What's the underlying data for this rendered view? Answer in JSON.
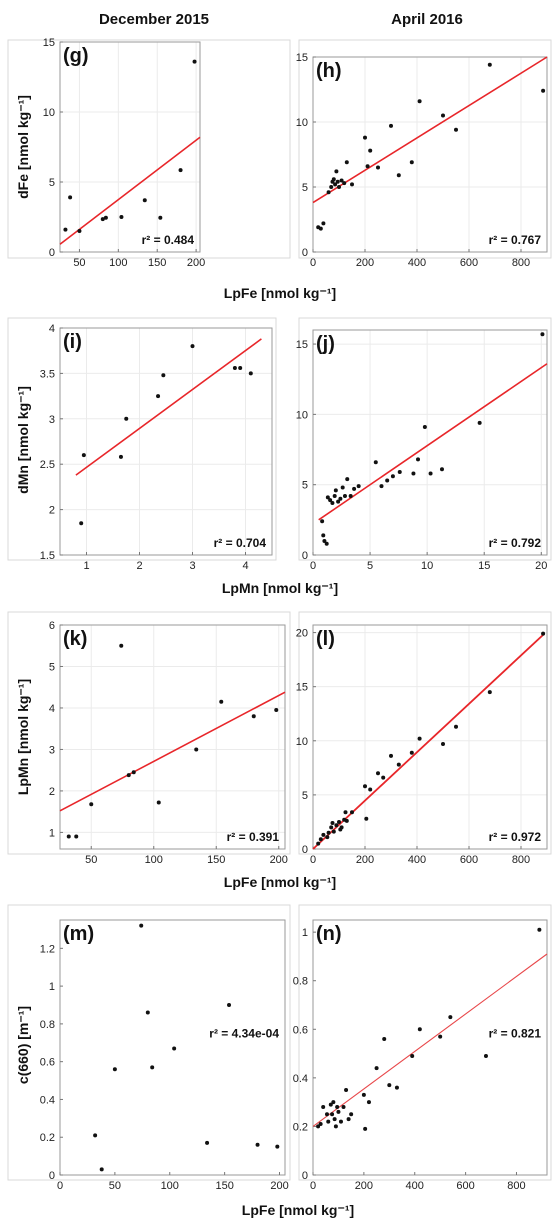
{
  "columns": [
    "December 2015",
    "April 2016"
  ],
  "chart_data": [
    {
      "id": "g",
      "type": "scatter",
      "label": "(g)",
      "r2": "r² = 0.484",
      "xlim": [
        25,
        205
      ],
      "ylim": [
        0,
        15
      ],
      "xticks": [
        50,
        100,
        150,
        200
      ],
      "yticks": [
        0,
        5,
        10,
        15
      ],
      "xticklabels": [
        "50",
        "100",
        "150",
        "200"
      ],
      "yticklabels": [
        "0",
        "5",
        "10",
        "15"
      ],
      "ylabel": "dFe [nmol kg⁻¹]",
      "points": [
        [
          32,
          1.6
        ],
        [
          38,
          3.9
        ],
        [
          50,
          1.5
        ],
        [
          80,
          2.35
        ],
        [
          84,
          2.45
        ],
        [
          104,
          2.5
        ],
        [
          134,
          3.7
        ],
        [
          154,
          2.45
        ],
        [
          180,
          5.85
        ],
        [
          198,
          13.6
        ]
      ],
      "fit": [
        [
          25,
          0.55
        ],
        [
          205,
          8.2
        ]
      ],
      "fit_color": "#e8262a",
      "fit_width": 1.6,
      "grid": true
    },
    {
      "id": "h",
      "type": "scatter",
      "label": "(h)",
      "r2": "r² = 0.767",
      "xlim": [
        0,
        900
      ],
      "ylim": [
        0,
        15
      ],
      "xticks": [
        0,
        200,
        400,
        600,
        800
      ],
      "yticks": [
        0,
        5,
        10,
        15
      ],
      "xticklabels": [
        "0",
        "200",
        "400",
        "600",
        "800"
      ],
      "yticklabels": [
        "0",
        "5",
        "10",
        "15"
      ],
      "points": [
        [
          20,
          1.9
        ],
        [
          30,
          1.8
        ],
        [
          40,
          2.2
        ],
        [
          60,
          4.6
        ],
        [
          70,
          5.0
        ],
        [
          75,
          5.4
        ],
        [
          80,
          5.6
        ],
        [
          85,
          5.2
        ],
        [
          90,
          6.2
        ],
        [
          95,
          5.4
        ],
        [
          100,
          5.0
        ],
        [
          110,
          5.5
        ],
        [
          120,
          5.3
        ],
        [
          130,
          6.9
        ],
        [
          150,
          5.2
        ],
        [
          200,
          8.8
        ],
        [
          210,
          6.6
        ],
        [
          220,
          7.8
        ],
        [
          250,
          6.5
        ],
        [
          300,
          9.7
        ],
        [
          330,
          5.9
        ],
        [
          380,
          6.9
        ],
        [
          410,
          11.6
        ],
        [
          500,
          10.5
        ],
        [
          550,
          9.4
        ],
        [
          680,
          14.4
        ],
        [
          885,
          12.4
        ]
      ],
      "fit": [
        [
          0,
          3.8
        ],
        [
          900,
          15.0
        ]
      ],
      "fit_color": "#e8262a",
      "fit_width": 1.6,
      "grid": true
    },
    {
      "id": "i",
      "type": "scatter",
      "label": "(i)",
      "r2": "r² = 0.704",
      "xlim": [
        0.5,
        4.5
      ],
      "ylim": [
        1.5,
        4
      ],
      "xticks": [
        1,
        2,
        3,
        4
      ],
      "yticks": [
        1.5,
        2,
        2.5,
        3,
        3.5,
        4
      ],
      "xticklabels": [
        "1",
        "2",
        "3",
        "4"
      ],
      "yticklabels": [
        "1.5",
        "2",
        "2.5",
        "3",
        "3.5",
        "4"
      ],
      "ylabel": "dMn [nmol kg⁻¹]",
      "points": [
        [
          0.9,
          1.85
        ],
        [
          0.95,
          2.6
        ],
        [
          1.65,
          2.58
        ],
        [
          1.75,
          3.0
        ],
        [
          2.35,
          3.25
        ],
        [
          2.45,
          3.48
        ],
        [
          3.0,
          3.8
        ],
        [
          3.8,
          3.56
        ],
        [
          3.9,
          3.56
        ],
        [
          4.1,
          3.5
        ]
      ],
      "fit": [
        [
          0.8,
          2.38
        ],
        [
          4.3,
          3.88
        ]
      ],
      "fit_color": "#e8262a",
      "fit_width": 1.6,
      "grid": true
    },
    {
      "id": "j",
      "type": "scatter",
      "label": "(j)",
      "r2": "r² = 0.792",
      "xlim": [
        0,
        20.5
      ],
      "ylim": [
        0,
        16
      ],
      "xticks": [
        0,
        5,
        10,
        15,
        20
      ],
      "yticks": [
        0,
        5,
        10,
        15
      ],
      "xticklabels": [
        "0",
        "5",
        "10",
        "15",
        "20"
      ],
      "yticklabels": [
        "0",
        "5",
        "10",
        "15"
      ],
      "points": [
        [
          0.8,
          2.4
        ],
        [
          0.9,
          1.4
        ],
        [
          1.0,
          1.0
        ],
        [
          1.2,
          0.8
        ],
        [
          1.3,
          4.1
        ],
        [
          1.5,
          3.9
        ],
        [
          1.7,
          3.7
        ],
        [
          1.9,
          4.2
        ],
        [
          2.0,
          4.6
        ],
        [
          2.2,
          3.8
        ],
        [
          2.4,
          4.0
        ],
        [
          2.6,
          4.8
        ],
        [
          2.8,
          4.2
        ],
        [
          3.0,
          5.4
        ],
        [
          3.3,
          4.2
        ],
        [
          3.6,
          4.7
        ],
        [
          4.0,
          4.9
        ],
        [
          5.5,
          6.6
        ],
        [
          6.0,
          4.9
        ],
        [
          6.5,
          5.3
        ],
        [
          7.0,
          5.6
        ],
        [
          7.6,
          5.9
        ],
        [
          8.8,
          5.8
        ],
        [
          9.2,
          6.8
        ],
        [
          9.8,
          9.1
        ],
        [
          10.3,
          5.8
        ],
        [
          11.3,
          6.1
        ],
        [
          14.6,
          9.4
        ],
        [
          20.1,
          15.7
        ]
      ],
      "fit": [
        [
          0.5,
          2.5
        ],
        [
          20.5,
          13.6
        ]
      ],
      "fit_color": "#e8262a",
      "fit_width": 1.6,
      "grid": true
    },
    {
      "id": "k",
      "type": "scatter",
      "label": "(k)",
      "r2": "r² = 0.391",
      "xlim": [
        25,
        205
      ],
      "ylim": [
        0.6,
        6
      ],
      "xticks": [
        50,
        100,
        150,
        200
      ],
      "yticks": [
        1,
        2,
        3,
        4,
        5,
        6
      ],
      "xticklabels": [
        "50",
        "100",
        "150",
        "200"
      ],
      "yticklabels": [
        "1",
        "2",
        "3",
        "4",
        "5",
        "6"
      ],
      "ylabel": "LpMn [nmol kg⁻¹]",
      "points": [
        [
          32,
          0.9
        ],
        [
          38,
          0.9
        ],
        [
          50,
          1.68
        ],
        [
          74,
          5.5
        ],
        [
          80,
          2.38
        ],
        [
          84,
          2.45
        ],
        [
          104,
          1.72
        ],
        [
          134,
          3.0
        ],
        [
          154,
          4.15
        ],
        [
          180,
          3.8
        ],
        [
          198,
          3.95
        ]
      ],
      "fit": [
        [
          25,
          1.52
        ],
        [
          205,
          4.38
        ]
      ],
      "fit_color": "#e8262a",
      "fit_width": 1.6,
      "grid": true
    },
    {
      "id": "l",
      "type": "scatter",
      "label": "(l)",
      "r2": "r² = 0.972",
      "xlim": [
        0,
        900
      ],
      "ylim": [
        0,
        20.7
      ],
      "xticks": [
        0,
        200,
        400,
        600,
        800
      ],
      "yticks": [
        0,
        5,
        10,
        15,
        20
      ],
      "xticklabels": [
        "0",
        "200",
        "400",
        "600",
        "800"
      ],
      "yticklabels": [
        "0",
        "5",
        "10",
        "15",
        "20"
      ],
      "points": [
        [
          20,
          0.5
        ],
        [
          30,
          0.9
        ],
        [
          40,
          1.3
        ],
        [
          55,
          1.1
        ],
        [
          60,
          1.5
        ],
        [
          70,
          2.0
        ],
        [
          75,
          2.4
        ],
        [
          80,
          1.6
        ],
        [
          90,
          2.2
        ],
        [
          100,
          2.5
        ],
        [
          105,
          1.8
        ],
        [
          110,
          2.0
        ],
        [
          120,
          2.7
        ],
        [
          125,
          3.4
        ],
        [
          130,
          2.6
        ],
        [
          150,
          3.4
        ],
        [
          200,
          5.8
        ],
        [
          205,
          2.8
        ],
        [
          220,
          5.5
        ],
        [
          250,
          7.0
        ],
        [
          270,
          6.6
        ],
        [
          300,
          8.6
        ],
        [
          330,
          7.8
        ],
        [
          380,
          8.9
        ],
        [
          410,
          10.2
        ],
        [
          500,
          9.7
        ],
        [
          550,
          11.3
        ],
        [
          680,
          14.5
        ],
        [
          885,
          19.9
        ]
      ],
      "fit": [
        [
          0,
          0.0
        ],
        [
          890,
          19.9
        ]
      ],
      "fit_color": "#e8262a",
      "fit_width": 1.8,
      "grid": true
    },
    {
      "id": "m",
      "type": "scatter",
      "label": "(m)",
      "r2": "r² = 4.34e-04",
      "xlim": [
        0,
        205
      ],
      "ylim": [
        0,
        1.35
      ],
      "xticks": [
        0,
        50,
        100,
        150,
        200
      ],
      "yticks": [
        0,
        0.2,
        0.4,
        0.6,
        0.8,
        1,
        1.2
      ],
      "xticklabels": [
        "0",
        "50",
        "100",
        "150",
        "200"
      ],
      "yticklabels": [
        "0",
        "0.2",
        "0.4",
        "0.6",
        "0.8",
        "1",
        "1.2"
      ],
      "ylabel": "c(660) [m⁻¹]",
      "points": [
        [
          32,
          0.21
        ],
        [
          38,
          0.03
        ],
        [
          50,
          0.56
        ],
        [
          74,
          1.32
        ],
        [
          80,
          0.86
        ],
        [
          84,
          0.57
        ],
        [
          104,
          0.67
        ],
        [
          134,
          0.17
        ],
        [
          154,
          0.9
        ],
        [
          180,
          0.16
        ],
        [
          198,
          0.15
        ]
      ],
      "fit": null,
      "grid": false
    },
    {
      "id": "n",
      "type": "scatter",
      "label": "(n)",
      "r2": "r² = 0.821",
      "xlim": [
        0,
        920
      ],
      "ylim": [
        0,
        1.05
      ],
      "xticks": [
        0,
        200,
        400,
        600,
        800
      ],
      "yticks": [
        0,
        0.2,
        0.4,
        0.6,
        0.8,
        1
      ],
      "xticklabels": [
        "0",
        "200",
        "400",
        "600",
        "800"
      ],
      "yticklabels": [
        "0",
        "0.2",
        "0.4",
        "0.6",
        "0.8",
        "1"
      ],
      "points": [
        [
          20,
          0.2
        ],
        [
          30,
          0.21
        ],
        [
          40,
          0.28
        ],
        [
          55,
          0.25
        ],
        [
          60,
          0.22
        ],
        [
          70,
          0.29
        ],
        [
          75,
          0.25
        ],
        [
          80,
          0.3
        ],
        [
          85,
          0.23
        ],
        [
          90,
          0.2
        ],
        [
          95,
          0.28
        ],
        [
          100,
          0.26
        ],
        [
          110,
          0.22
        ],
        [
          120,
          0.28
        ],
        [
          130,
          0.35
        ],
        [
          140,
          0.23
        ],
        [
          150,
          0.25
        ],
        [
          200,
          0.33
        ],
        [
          205,
          0.19
        ],
        [
          220,
          0.3
        ],
        [
          250,
          0.44
        ],
        [
          280,
          0.56
        ],
        [
          300,
          0.37
        ],
        [
          330,
          0.36
        ],
        [
          390,
          0.49
        ],
        [
          420,
          0.6
        ],
        [
          500,
          0.57
        ],
        [
          540,
          0.65
        ],
        [
          680,
          0.49
        ],
        [
          890,
          1.01
        ]
      ],
      "fit": [
        [
          0,
          0.2
        ],
        [
          920,
          0.91
        ]
      ],
      "fit_color": "#e8474a",
      "fit_width": 1.1,
      "grid": false
    }
  ],
  "xlabels": [
    "LpFe [nmol kg⁻¹]",
    "LpMn [nmol kg⁻¹]",
    "LpFe [nmol kg⁻¹]",
    "LpFe [nmol kg⁻¹]"
  ]
}
